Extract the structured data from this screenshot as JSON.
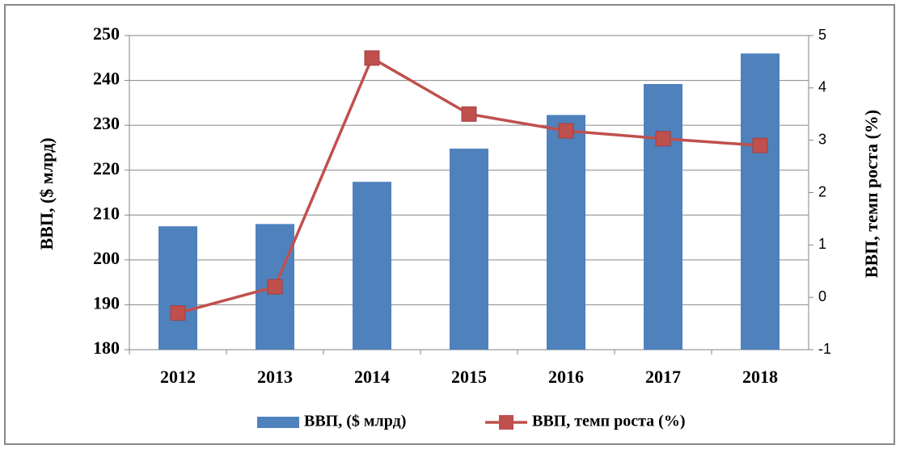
{
  "chart_data": {
    "type": "bar_line",
    "categories": [
      "2012",
      "2013",
      "2014",
      "2015",
      "2016",
      "2017",
      "2018"
    ],
    "ylabel": "ВВП, ($ млрд)",
    "y2label": "ВВП, темп роста (%)",
    "ylim": [
      180,
      250
    ],
    "yticks": [
      180,
      190,
      200,
      210,
      220,
      230,
      240,
      250
    ],
    "y2lim": [
      -1,
      5
    ],
    "y2ticks": [
      -1,
      0,
      1,
      2,
      3,
      4,
      5
    ],
    "grid": true,
    "legend": "bottom",
    "series": [
      {
        "name": "ВВП, ($ млрд)",
        "type": "bar",
        "color": "#4f81bd",
        "values": [
          207.5,
          208,
          217.4,
          224.8,
          232.3,
          239.2,
          246
        ]
      },
      {
        "name": "ВВП, темп роста  (%)",
        "type": "line",
        "axis": "y2",
        "color": "#c0504d",
        "values": [
          -0.3,
          0.2,
          4.57,
          3.5,
          3.18,
          3.03,
          2.9
        ]
      }
    ]
  }
}
